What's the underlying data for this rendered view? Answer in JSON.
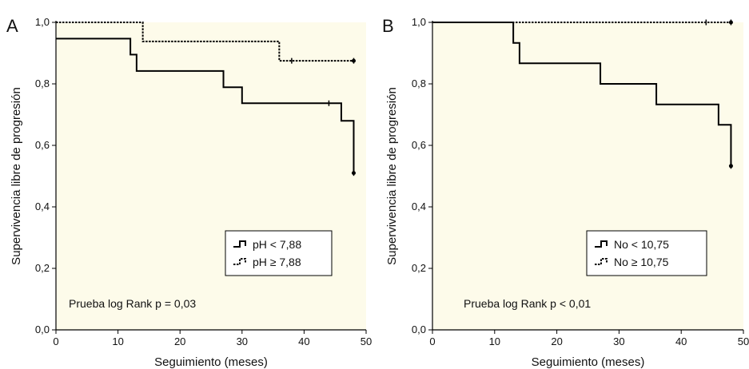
{
  "chart_data": [
    {
      "type": "line",
      "panel_label": "A",
      "xlabel": "Seguimiento (meses)",
      "ylabel": "Supervivencia libre de progresión",
      "xlim": [
        0,
        50
      ],
      "ylim": [
        0,
        1.0
      ],
      "x_ticks": [
        "0",
        "10",
        "20",
        "30",
        "40",
        "50"
      ],
      "y_ticks": [
        "0,0",
        "0,2",
        "0,4",
        "0,6",
        "0,8",
        "1,0"
      ],
      "grid": false,
      "background_color": "#fdfbea",
      "legend_position": "bottom-right",
      "annotation": "Prueba log Rank p = 0,03",
      "series": [
        {
          "name": "pH < 7,88",
          "style": "solid",
          "steps": [
            [
              0,
              0.947
            ],
            [
              12,
              0.895
            ],
            [
              13,
              0.842
            ],
            [
              27,
              0.789
            ],
            [
              30,
              0.737
            ],
            [
              46,
              0.68
            ],
            [
              48,
              0.51
            ]
          ],
          "censored": [
            [
              44,
              0.737
            ],
            [
              48,
              0.51
            ]
          ]
        },
        {
          "name": "pH ≥ 7,88",
          "style": "dotted",
          "steps": [
            [
              0,
              1.0
            ],
            [
              14,
              0.938
            ],
            [
              36,
              0.875
            ],
            [
              48,
              0.875
            ]
          ],
          "censored": [
            [
              38,
              0.875
            ],
            [
              48,
              0.875
            ]
          ]
        }
      ]
    },
    {
      "type": "line",
      "panel_label": "B",
      "xlabel": "Seguimiento (meses)",
      "ylabel": "Supervivencia libre de progresión",
      "xlim": [
        0,
        50
      ],
      "ylim": [
        0,
        1.0
      ],
      "x_ticks": [
        "0",
        "10",
        "20",
        "30",
        "40",
        "50"
      ],
      "y_ticks": [
        "0,0",
        "0,2",
        "0,4",
        "0,6",
        "0,8",
        "1,0"
      ],
      "grid": false,
      "background_color": "#fdfbea",
      "legend_position": "bottom-right",
      "annotation": "Prueba log Rank p < 0,01",
      "series": [
        {
          "name": "No < 10,75",
          "style": "solid",
          "steps": [
            [
              0,
              1.0
            ],
            [
              13,
              0.933
            ],
            [
              14,
              0.867
            ],
            [
              27,
              0.8
            ],
            [
              36,
              0.733
            ],
            [
              46,
              0.667
            ],
            [
              48,
              0.533
            ]
          ],
          "censored": [
            [
              48,
              0.533
            ]
          ]
        },
        {
          "name": "No ≥ 10,75",
          "style": "dotted",
          "steps": [
            [
              0,
              1.0
            ],
            [
              48,
              1.0
            ]
          ],
          "censored": [
            [
              44,
              1.0
            ],
            [
              48,
              1.0
            ]
          ]
        }
      ]
    }
  ]
}
